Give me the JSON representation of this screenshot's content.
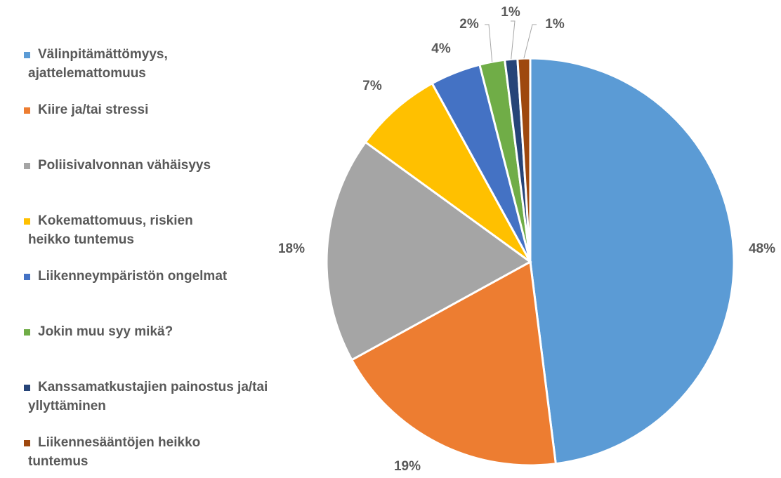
{
  "chart_data": {
    "type": "pie",
    "categories": [
      "Välinpitämättömyys, ajattelemattomuus",
      "Kiire ja/tai stressi",
      "Poliisivalvonnan vähäisyys",
      "Kokemattomuus, riskien heikko tuntemus",
      "Liikenneympäristön ongelmat",
      "Jokin muu syy mikä?",
      "Kanssamatkustajien painostus ja/tai yllyttäminen",
      "Liikennesääntöjen heikko tuntemus"
    ],
    "values": [
      48,
      19,
      18,
      7,
      4,
      2,
      1,
      1
    ],
    "value_labels": [
      "48%",
      "19%",
      "18%",
      "7%",
      "4%",
      "2%",
      "1%",
      "1%"
    ],
    "colors": [
      "#5b9bd5",
      "#ed7d31",
      "#a5a5a5",
      "#ffc000",
      "#4472c4",
      "#70ad47",
      "#264478",
      "#9e480e"
    ],
    "legend": "left"
  }
}
